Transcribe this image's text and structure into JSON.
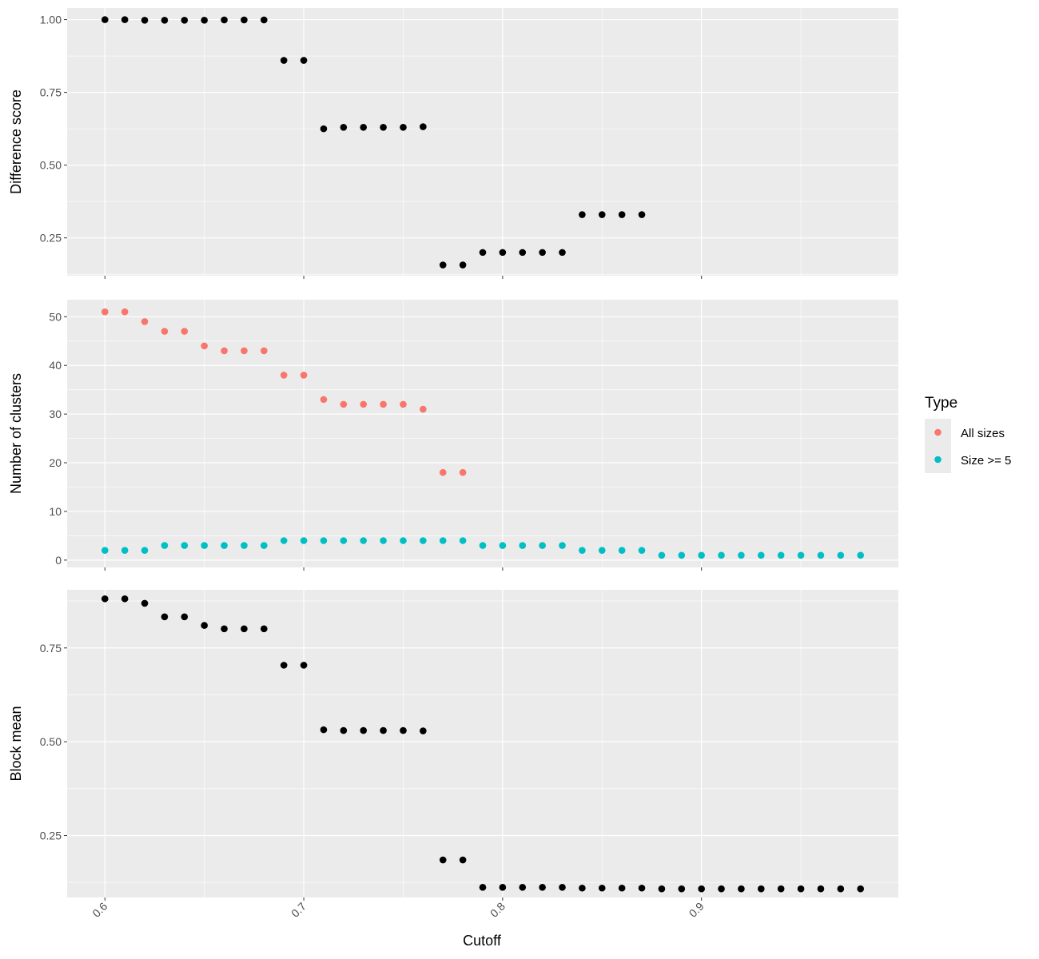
{
  "chart_data": [
    {
      "type": "scatter",
      "panel": "top",
      "xlabel": "",
      "ylabel": "Difference score",
      "xlim": [
        0.581,
        0.999
      ],
      "ylim": [
        0.12,
        1.04
      ],
      "yticks": [
        0.25,
        0.5,
        0.75,
        1.0
      ],
      "ytick_labels": [
        "0.25",
        "0.50",
        "0.75",
        "1.00"
      ],
      "xticks": [
        0.6,
        0.7,
        0.8,
        0.9
      ],
      "grid": true,
      "series": [
        {
          "color": "#000000",
          "x": [
            0.6,
            0.61,
            0.62,
            0.63,
            0.64,
            0.65,
            0.66,
            0.67,
            0.68,
            0.69,
            0.7,
            0.71,
            0.72,
            0.73,
            0.74,
            0.75,
            0.76,
            0.77,
            0.78,
            0.79,
            0.8,
            0.81,
            0.82,
            0.83,
            0.84,
            0.85,
            0.86,
            0.87
          ],
          "y": [
            1.0,
            1.0,
            0.998,
            0.998,
            0.998,
            0.998,
            0.999,
            0.999,
            0.999,
            0.86,
            0.86,
            0.625,
            0.63,
            0.63,
            0.63,
            0.63,
            0.632,
            0.157,
            0.157,
            0.2,
            0.2,
            0.2,
            0.2,
            0.2,
            0.33,
            0.33,
            0.33,
            0.33
          ]
        }
      ]
    },
    {
      "type": "scatter",
      "panel": "middle",
      "xlabel": "",
      "ylabel": "Number of clusters",
      "xlim": [
        0.581,
        0.999
      ],
      "ylim": [
        -1.5,
        53.5
      ],
      "yticks": [
        0,
        10,
        20,
        30,
        40,
        50
      ],
      "ytick_labels": [
        "0",
        "10",
        "20",
        "30",
        "40",
        "50"
      ],
      "xticks": [
        0.6,
        0.7,
        0.8,
        0.9
      ],
      "grid": true,
      "legend": {
        "title": "Type",
        "placement": "right"
      },
      "series": [
        {
          "name": "All sizes",
          "color": "#F8766D",
          "x": [
            0.6,
            0.61,
            0.62,
            0.63,
            0.64,
            0.65,
            0.66,
            0.67,
            0.68,
            0.69,
            0.7,
            0.71,
            0.72,
            0.73,
            0.74,
            0.75,
            0.76,
            0.77,
            0.78
          ],
          "y": [
            51,
            51,
            49,
            47,
            47,
            44,
            43,
            43,
            43,
            38,
            38,
            33,
            32,
            32,
            32,
            32,
            31,
            18,
            18
          ]
        },
        {
          "name": "Size >= 5",
          "color": "#00BFC4",
          "x": [
            0.6,
            0.61,
            0.62,
            0.63,
            0.64,
            0.65,
            0.66,
            0.67,
            0.68,
            0.69,
            0.7,
            0.71,
            0.72,
            0.73,
            0.74,
            0.75,
            0.76,
            0.77,
            0.78,
            0.79,
            0.8,
            0.81,
            0.82,
            0.83,
            0.84,
            0.85,
            0.86,
            0.87,
            0.88,
            0.89,
            0.9,
            0.91,
            0.92,
            0.93,
            0.94,
            0.95,
            0.96,
            0.97,
            0.98
          ],
          "y": [
            2,
            2,
            2,
            3,
            3,
            3,
            3,
            3,
            3,
            4,
            4,
            4,
            4,
            4,
            4,
            4,
            4,
            4,
            4,
            3,
            3,
            3,
            3,
            3,
            2,
            2,
            2,
            2,
            1,
            1,
            1,
            1,
            1,
            1,
            1,
            1,
            1,
            1,
            1
          ]
        }
      ]
    },
    {
      "type": "scatter",
      "panel": "bottom",
      "xlabel": "Cutoff",
      "ylabel": "Block mean",
      "xlim": [
        0.581,
        0.999
      ],
      "ylim": [
        0.085,
        0.905
      ],
      "yticks": [
        0.25,
        0.5,
        0.75
      ],
      "ytick_labels": [
        "0.25",
        "0.50",
        "0.75"
      ],
      "xticks": [
        0.6,
        0.7,
        0.8,
        0.9
      ],
      "xtick_labels": [
        "0.6",
        "0.7",
        "0.8",
        "0.9"
      ],
      "grid": true,
      "series": [
        {
          "color": "#000000",
          "x": [
            0.6,
            0.61,
            0.62,
            0.63,
            0.64,
            0.65,
            0.66,
            0.67,
            0.68,
            0.69,
            0.7,
            0.71,
            0.72,
            0.73,
            0.74,
            0.75,
            0.76,
            0.77,
            0.78,
            0.79,
            0.8,
            0.81,
            0.82,
            0.83,
            0.84,
            0.85,
            0.86,
            0.87,
            0.88,
            0.89,
            0.9,
            0.91,
            0.92,
            0.93,
            0.94,
            0.95,
            0.96,
            0.97,
            0.98
          ],
          "y": [
            0.881,
            0.881,
            0.869,
            0.833,
            0.833,
            0.81,
            0.801,
            0.801,
            0.801,
            0.704,
            0.704,
            0.532,
            0.53,
            0.53,
            0.53,
            0.53,
            0.529,
            0.185,
            0.185,
            0.112,
            0.112,
            0.112,
            0.112,
            0.112,
            0.11,
            0.11,
            0.11,
            0.11,
            0.108,
            0.108,
            0.108,
            0.108,
            0.108,
            0.108,
            0.108,
            0.108,
            0.108,
            0.108,
            0.108
          ]
        }
      ]
    }
  ]
}
